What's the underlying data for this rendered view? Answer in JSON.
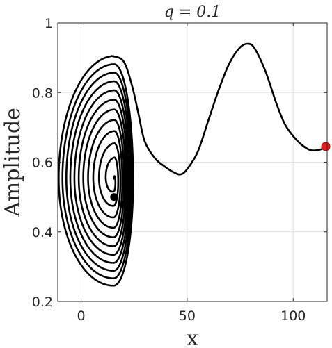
{
  "chart_data": {
    "type": "line",
    "title": "q = 0.1",
    "xlabel": "x",
    "ylabel": "Amplitude",
    "xlim": [
      -11,
      116
    ],
    "ylim": [
      0.2,
      1.0
    ],
    "x_ticks": [
      "0",
      "50",
      "100"
    ],
    "x_tick_values": [
      0,
      50,
      100
    ],
    "y_ticks": [
      "0.2",
      "0.4",
      "0.6",
      "0.8",
      "1"
    ],
    "y_tick_values": [
      0.2,
      0.4,
      0.6,
      0.8,
      1.0
    ],
    "grid": true,
    "line_color": "#000000",
    "start_marker": {
      "x": 15.5,
      "y": 0.5,
      "color": "#000000"
    },
    "end_marker": {
      "x": 116,
      "y": 0.645,
      "color": "#e41a1c"
    },
    "tail_series": {
      "name": "",
      "points": [
        [
          14.5,
          0.905
        ],
        [
          20,
          0.89
        ],
        [
          24,
          0.82
        ],
        [
          27,
          0.74
        ],
        [
          30,
          0.66
        ],
        [
          35,
          0.61
        ],
        [
          40,
          0.585
        ],
        [
          44,
          0.57
        ],
        [
          47,
          0.565
        ],
        [
          50,
          0.58
        ],
        [
          55,
          0.63
        ],
        [
          60,
          0.72
        ],
        [
          65,
          0.81
        ],
        [
          70,
          0.885
        ],
        [
          75,
          0.93
        ],
        [
          79,
          0.94
        ],
        [
          82,
          0.925
        ],
        [
          87,
          0.86
        ],
        [
          92,
          0.77
        ],
        [
          96,
          0.71
        ],
        [
          100,
          0.675
        ],
        [
          104,
          0.65
        ],
        [
          108,
          0.635
        ],
        [
          112,
          0.635
        ],
        [
          116,
          0.645
        ]
      ]
    },
    "spiral": {
      "center_x": 15.5,
      "center_y": 0.55,
      "outer_top": 0.905,
      "outer_bottom": 0.235,
      "outer_left": -11,
      "outer_right": 25,
      "loops": 11
    }
  }
}
